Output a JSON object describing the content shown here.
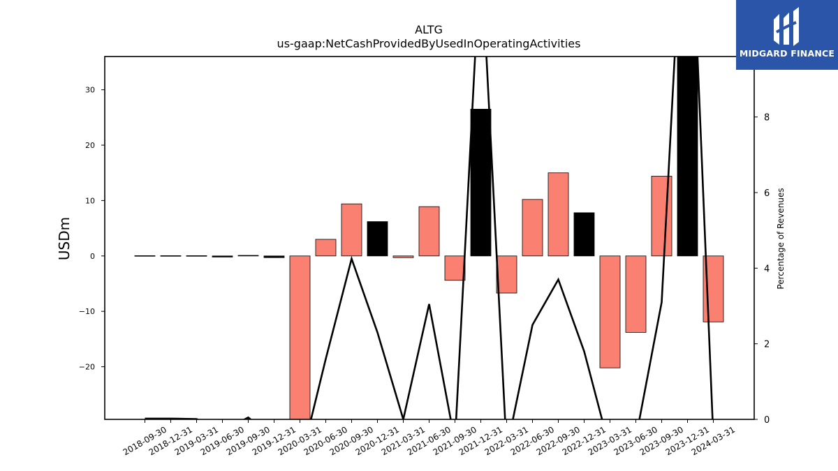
{
  "chart_data": {
    "type": "bar",
    "title": "ALTG",
    "subtitle": "us-gaap:NetCashProvidedByUsedInOperatingActivities",
    "ylabel": "USDm",
    "ylabel_right": "Percentage of Revenues",
    "categories": [
      "2018-09-30",
      "2018-12-31",
      "2019-03-31",
      "2019-06-30",
      "2019-09-30",
      "2019-12-31",
      "2020-03-31",
      "2020-06-30",
      "2020-09-30",
      "2020-12-31",
      "2021-03-31",
      "2021-06-30",
      "2021-09-30",
      "2021-12-31",
      "2022-03-31",
      "2022-06-30",
      "2022-09-30",
      "2022-12-31",
      "2023-03-31",
      "2023-06-30",
      "2023-09-30",
      "2023-12-31",
      "2024-03-31"
    ],
    "ylim": [
      -29.5,
      36
    ],
    "ylim_right": [
      0,
      9.6
    ],
    "yticks": [
      -20,
      -10,
      0,
      10,
      20,
      30
    ],
    "yticks_right": [
      0,
      2,
      4,
      6,
      8
    ],
    "series": [
      {
        "kind": "bar",
        "values": [
          0.05,
          0.05,
          0.05,
          -0.2,
          0.1,
          -0.3,
          -31,
          3,
          9.4,
          6.2,
          -0.3,
          8.9,
          -4.4,
          26.5,
          -6.7,
          10.2,
          15,
          7.8,
          -20.2,
          -13.8,
          14.4,
          36,
          -11.9
        ],
        "colors": [
          "#fa8072",
          "#fa8072",
          "#fa8072",
          "#000000",
          "#fa8072",
          "#000000",
          "#fa8072",
          "#fa8072",
          "#fa8072",
          "#000000",
          "#fa8072",
          "#fa8072",
          "#fa8072",
          "#000000",
          "#fa8072",
          "#fa8072",
          "#fa8072",
          "#000000",
          "#fa8072",
          "#fa8072",
          "#fa8072",
          "#000000",
          "#fa8072"
        ]
      },
      {
        "kind": "line",
        "axis": "right",
        "color": "#000000",
        "values": [
          0.02,
          0.02,
          0.01,
          -0.3,
          0.05,
          -0.5,
          -1.2,
          1.6,
          4.25,
          2.3,
          0,
          3.05,
          -0.6,
          12.5,
          -0.8,
          2.5,
          3.7,
          1.8,
          -0.8,
          -0.5,
          3.1,
          16,
          -0.5
        ]
      }
    ]
  },
  "logo": {
    "text": "MIDGARD FINANCE"
  }
}
